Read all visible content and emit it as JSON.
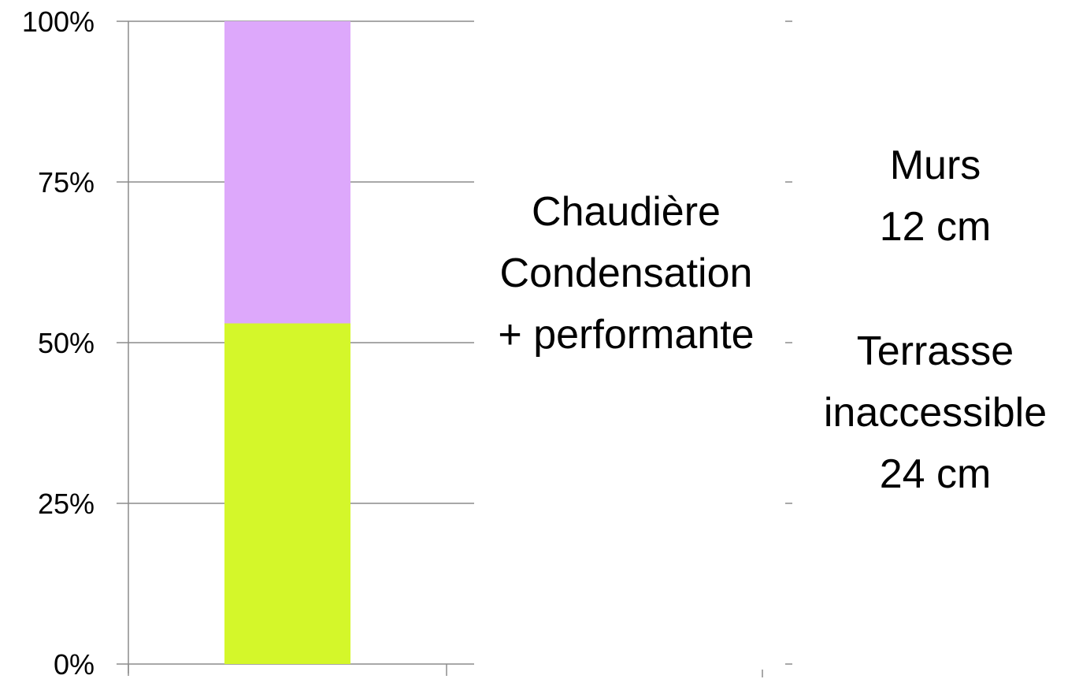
{
  "chart_data": {
    "type": "bar",
    "stacked": true,
    "percent": true,
    "categories": [
      ""
    ],
    "series": [
      {
        "values": [
          53
        ],
        "color": "#d4f72a"
      },
      {
        "values": [
          47
        ],
        "color": "#dda8fb"
      }
    ],
    "ylim": [
      0,
      100
    ],
    "yticks": [
      {
        "value": 0,
        "label": "0%"
      },
      {
        "value": 25,
        "label": "25%"
      },
      {
        "value": 50,
        "label": "50%"
      },
      {
        "value": 75,
        "label": "75%"
      },
      {
        "value": 100,
        "label": "100%"
      }
    ],
    "grid": true,
    "title": "",
    "xlabel": "",
    "ylabel": ""
  },
  "annotations": {
    "boiler": {
      "line1": "Chaudière",
      "line2": "Condensation",
      "line3": "+ performante"
    },
    "walls": {
      "line1": "Murs",
      "line2": "12 cm",
      "line3": "Terrasse",
      "line4": "inaccessible",
      "line5": "24 cm"
    }
  },
  "colors": {
    "grid": "#8c8c8c",
    "axis": "#8c8c8c"
  }
}
